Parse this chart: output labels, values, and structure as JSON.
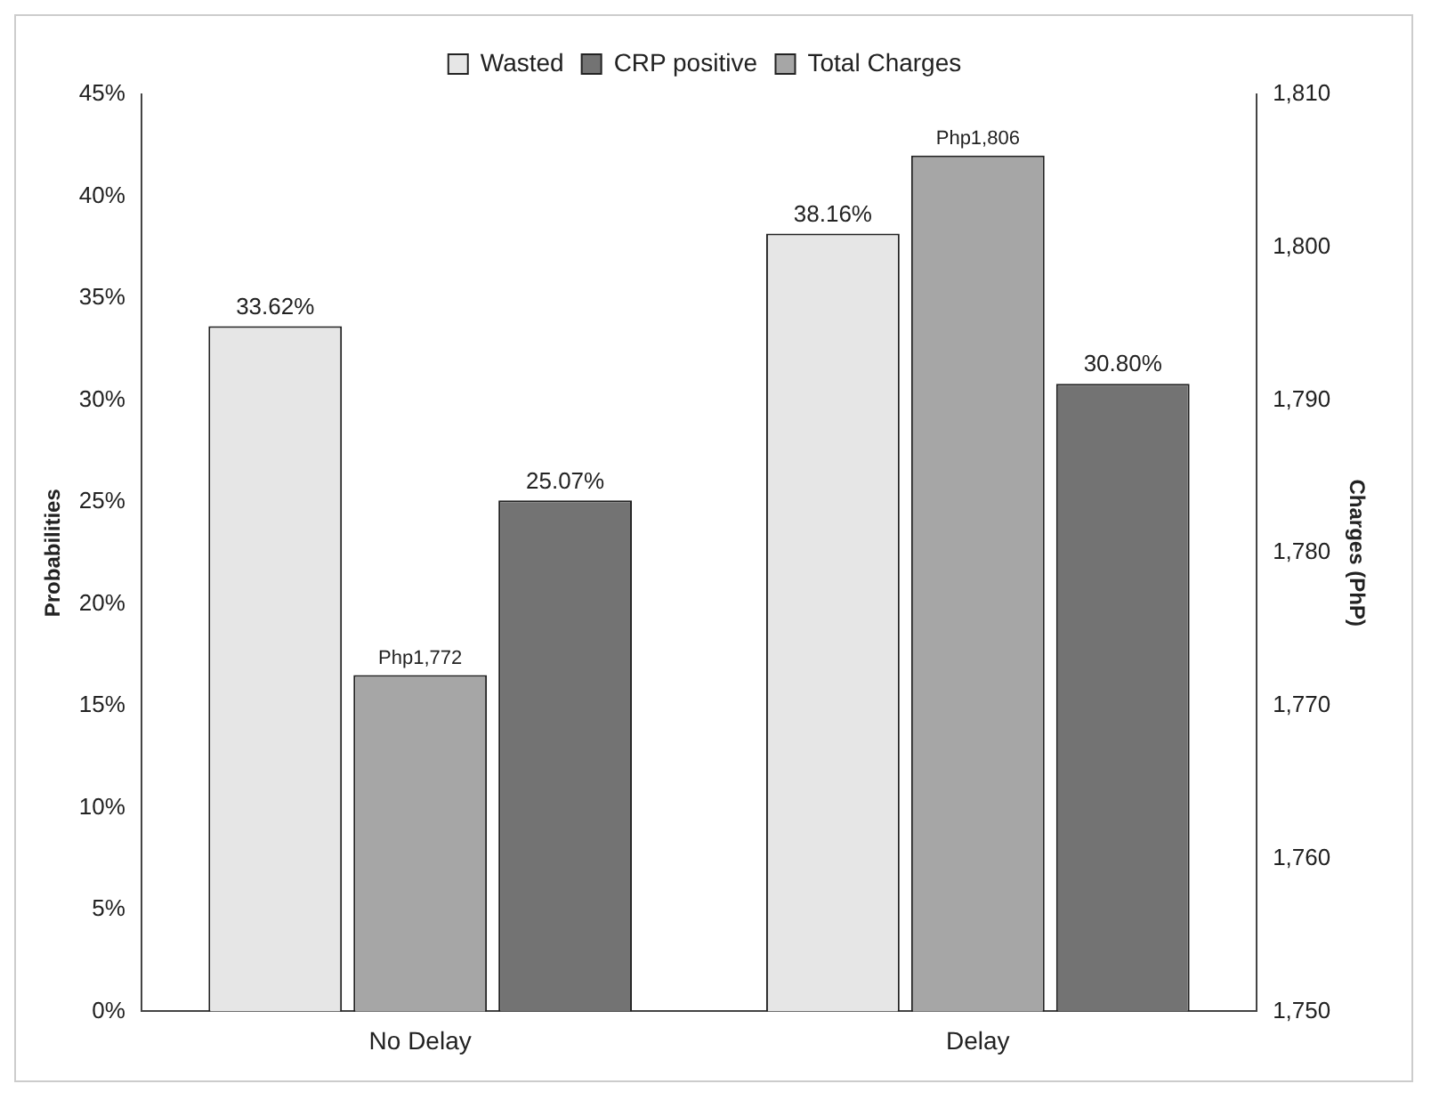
{
  "chart_data": {
    "type": "bar",
    "categories": [
      "No Delay",
      "Delay"
    ],
    "ylabel": "Probabilities",
    "y2label": "Charges (PhP)",
    "series": [
      {
        "name": "Wasted",
        "color": "#e6e6e6",
        "values": [
          33.62,
          38.16
        ],
        "value_labels": [
          "33.62%",
          "38.16%"
        ]
      },
      {
        "name": "Total Charges",
        "color": "#a6a6a6",
        "values": [
          1772,
          1806
        ],
        "axis": "y2",
        "value_labels": [
          "Php1,772",
          "Php1,806"
        ]
      },
      {
        "name": "CRP positive",
        "color": "#737373",
        "values": [
          25.07,
          30.8
        ],
        "value_labels": [
          "25.07%",
          "30.80%"
        ]
      }
    ],
    "ylim": [
      0,
      45
    ],
    "yticks": [
      {
        "value": 0,
        "label": "0%"
      },
      {
        "value": 5,
        "label": "5%"
      },
      {
        "value": 10,
        "label": "10%"
      },
      {
        "value": 15,
        "label": "15%"
      },
      {
        "value": 20,
        "label": "20%"
      },
      {
        "value": 25,
        "label": "25%"
      },
      {
        "value": 30,
        "label": "30%"
      },
      {
        "value": 35,
        "label": "35%"
      },
      {
        "value": 40,
        "label": "40%"
      },
      {
        "value": 45,
        "label": "45%"
      }
    ],
    "y2lim": [
      1750,
      1810
    ],
    "y2ticks": [
      {
        "value": 1750,
        "label": "1,750"
      },
      {
        "value": 1760,
        "label": "1,760"
      },
      {
        "value": 1770,
        "label": "1,770"
      },
      {
        "value": 1780,
        "label": "1,780"
      },
      {
        "value": 1790,
        "label": "1,790"
      },
      {
        "value": 1800,
        "label": "1,800"
      },
      {
        "value": 1810,
        "label": "1,810"
      }
    ],
    "legend": "top",
    "grid": false
  }
}
